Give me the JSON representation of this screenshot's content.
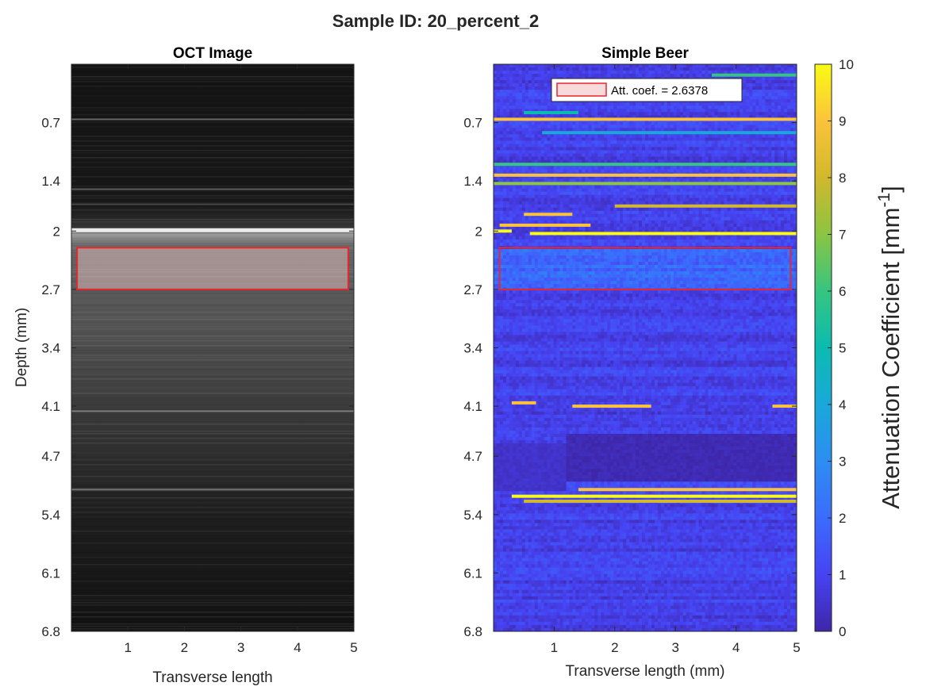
{
  "figure": {
    "suptitle": "Sample ID: 20_percent_2"
  },
  "chart_data": [
    {
      "type": "heatmap",
      "title": "OCT Image",
      "xlabel": "Transverse length",
      "ylabel": "Depth (mm)",
      "xlim": [
        0,
        5
      ],
      "ylim": [
        6.8,
        0
      ],
      "y_reversed": true,
      "x_ticks": [
        1,
        2,
        3,
        4,
        5
      ],
      "y_ticks": [
        "0.7",
        "1.4",
        "2",
        "2.7",
        "3.4",
        "4.1",
        "4.7",
        "5.4",
        "6.1",
        "6.8"
      ],
      "colormap": "gray",
      "roi": {
        "x": [
          0.1,
          4.9
        ],
        "y": [
          2.2,
          2.7
        ],
        "color": "#e8262c",
        "fill": "#f4c9c9"
      },
      "bright_bands": [
        {
          "depth": 0.66,
          "intensity": 0.3
        },
        {
          "depth": 1.5,
          "intensity": 0.25
        },
        {
          "depth": 1.68,
          "intensity": 0.2
        },
        {
          "depth": 1.99,
          "intensity": 0.9
        },
        {
          "depth": 4.16,
          "intensity": 0.35
        },
        {
          "depth": 5.1,
          "intensity": 0.35
        }
      ]
    },
    {
      "type": "heatmap",
      "title": "Simple Beer",
      "xlabel": "Transverse length (mm)",
      "ylabel": "",
      "xlim": [
        0,
        5
      ],
      "ylim": [
        6.8,
        0
      ],
      "y_reversed": true,
      "x_ticks": [
        1,
        2,
        3,
        4,
        5
      ],
      "y_ticks": [
        "0.7",
        "1.4",
        "2",
        "2.7",
        "3.4",
        "4.1",
        "4.7",
        "5.4",
        "6.1",
        "6.8"
      ],
      "colormap": "parula",
      "roi": {
        "x": [
          0.1,
          4.9
        ],
        "y": [
          2.2,
          2.7
        ],
        "color": "#e8262c"
      },
      "legend": {
        "label": "Att. coef. = 2.6378",
        "location": "top-center",
        "swatch_color": "#e8262c",
        "swatch_fill": "#f9dada"
      },
      "colorbar": {
        "label": "Attenuation Coefficient [mm",
        "label_superscript": "-1",
        "label_suffix": "]",
        "range": [
          0,
          10
        ],
        "ticks": [
          "0",
          "1",
          "2",
          "3",
          "4",
          "5",
          "6",
          "7",
          "8",
          "9",
          "10"
        ]
      },
      "bright_streaks": [
        {
          "depth": 0.13,
          "x": [
            3.6,
            5.0
          ],
          "value": 6
        },
        {
          "depth": 0.58,
          "x": [
            0.5,
            1.4
          ],
          "value": 5
        },
        {
          "depth": 0.66,
          "x": [
            0.0,
            5.0
          ],
          "value": 9
        },
        {
          "depth": 0.82,
          "x": [
            0.8,
            5.0
          ],
          "value": 4
        },
        {
          "depth": 1.2,
          "x": [
            0.0,
            5.0
          ],
          "value": 6
        },
        {
          "depth": 1.33,
          "x": [
            0.0,
            5.0
          ],
          "value": 9
        },
        {
          "depth": 1.43,
          "x": [
            0.0,
            5.0
          ],
          "value": 7
        },
        {
          "depth": 1.7,
          "x": [
            2.0,
            5.0
          ],
          "value": 8
        },
        {
          "depth": 1.8,
          "x": [
            0.5,
            1.3
          ],
          "value": 9
        },
        {
          "depth": 1.93,
          "x": [
            0.1,
            1.6
          ],
          "value": 9
        },
        {
          "depth": 2.0,
          "x": [
            0.0,
            0.3
          ],
          "value": 10
        },
        {
          "depth": 2.03,
          "x": [
            0.6,
            5.0
          ],
          "value": 10
        },
        {
          "depth": 4.06,
          "x": [
            0.3,
            0.7
          ],
          "value": 9
        },
        {
          "depth": 4.1,
          "x": [
            1.3,
            2.6
          ],
          "value": 9
        },
        {
          "depth": 4.1,
          "x": [
            4.6,
            5.0
          ],
          "value": 9
        },
        {
          "depth": 5.1,
          "x": [
            1.4,
            5.0
          ],
          "value": 9
        },
        {
          "depth": 5.18,
          "x": [
            0.3,
            5.0
          ],
          "value": 10
        },
        {
          "depth": 5.24,
          "x": [
            0.5,
            5.0
          ],
          "value": 8
        }
      ],
      "dark_regions": [
        {
          "depth": [
            4.45,
            5.0
          ],
          "x": [
            1.2,
            5.0
          ],
          "value": 0.0
        },
        {
          "depth": [
            4.55,
            5.1
          ],
          "x": [
            0.0,
            1.2
          ],
          "value": 0.3
        }
      ]
    }
  ]
}
